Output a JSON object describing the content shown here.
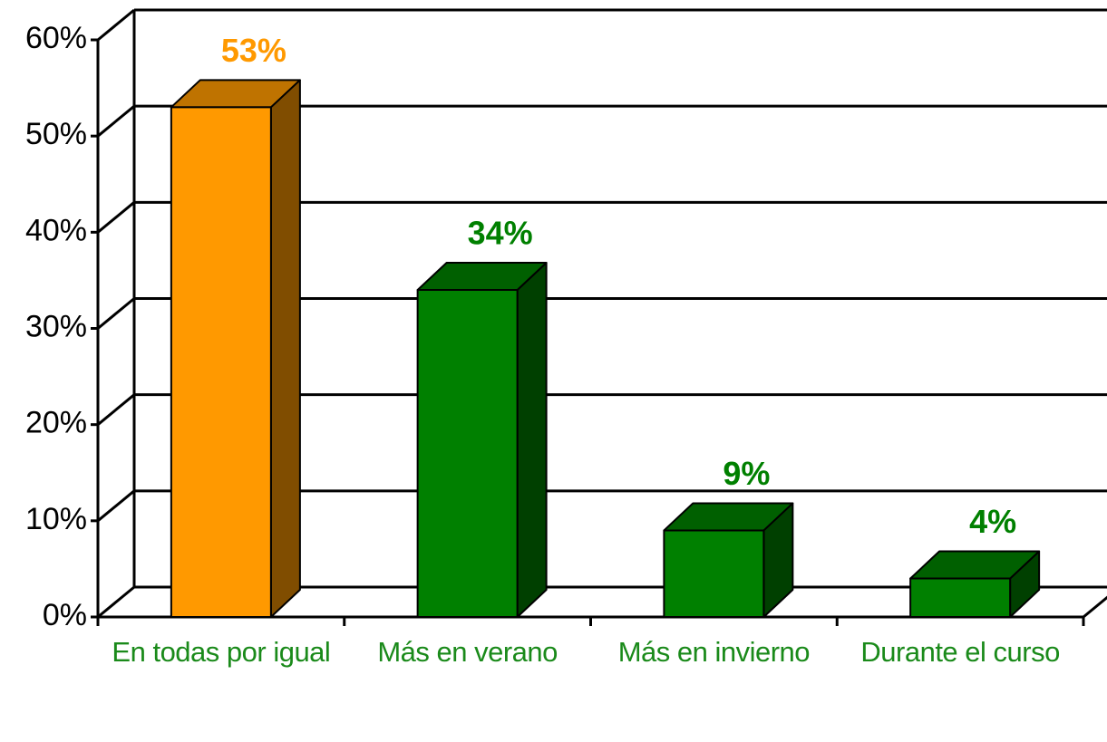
{
  "chart_data": {
    "type": "bar3d",
    "categories": [
      "En todas por igual",
      "Más en verano",
      "Más en invierno",
      "Durante el curso"
    ],
    "values": [
      53,
      34,
      9,
      4
    ],
    "value_labels": [
      "53%",
      "34%",
      "9%",
      "4%"
    ],
    "colors": [
      "#ff9900",
      "#008000",
      "#008000",
      "#008000"
    ],
    "ylim": [
      0,
      60
    ],
    "yticks": [
      {
        "value": 0,
        "label": "0%"
      },
      {
        "value": 10,
        "label": "10%"
      },
      {
        "value": 20,
        "label": "20%"
      },
      {
        "value": 30,
        "label": "30%"
      },
      {
        "value": 40,
        "label": "40%"
      },
      {
        "value": 50,
        "label": "50%"
      },
      {
        "value": 60,
        "label": "60%"
      }
    ],
    "grid": true
  }
}
